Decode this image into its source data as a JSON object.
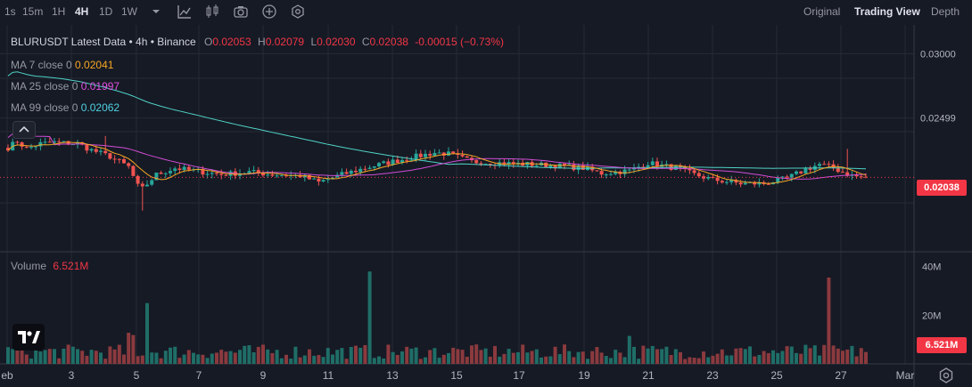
{
  "toolbar": {
    "intervals": [
      "1s",
      "15m",
      "1H",
      "4H",
      "1D",
      "1W"
    ],
    "active_interval": "4H",
    "icons": [
      "chevron-down-icon",
      "indicators-icon",
      "candles-icon",
      "camera-icon",
      "add-icon",
      "settings-hex-icon"
    ],
    "views": [
      "Original",
      "Trading View",
      "Depth"
    ],
    "active_view": "Trading View"
  },
  "legend": {
    "title": "BLURUSDT Latest Data • 4h • Binance",
    "o_label": "O",
    "o_value": "0.02053",
    "h_label": "H",
    "h_value": "0.02079",
    "l_label": "L",
    "l_value": "0.02030",
    "c_label": "C",
    "c_value": "0.02038",
    "change": "-0.00015 (−0.73%)",
    "ma7_label": "MA 7 close 0",
    "ma7_value": "0.02041",
    "ma25_label": "MA 25 close 0",
    "ma25_value": "0.01997",
    "ma99_label": "MA 99 close 0",
    "ma99_value": "0.02062",
    "volume_label": "Volume",
    "volume_value": "6.521M"
  },
  "colors": {
    "up": "#26a69a",
    "down": "#ef5350",
    "ma7": "#f5a623",
    "ma25": "#d04dd6",
    "ma99": "#4fd1c5",
    "accent": "#f23645"
  },
  "chart_data": {
    "type": "candlestick",
    "price_axis": {
      "ticks": [
        0.03,
        0.02499
      ],
      "tick_labels": [
        "0.03000",
        "0.02499"
      ],
      "range": [
        0.0148,
        0.0321
      ]
    },
    "volume_axis": {
      "ticks": [
        40,
        20
      ],
      "tick_labels": [
        "40M",
        "20M"
      ],
      "unit": "M",
      "range": [
        0,
        45
      ]
    },
    "x_labels": [
      "eb",
      "3",
      "5",
      "7",
      "9",
      "11",
      "13",
      "15",
      "17",
      "19",
      "21",
      "23",
      "25",
      "27",
      "Mar"
    ],
    "last_price": "0.02038",
    "last_volume": "6.521M",
    "price_anchors": [
      [
        0,
        0.0227
      ],
      [
        2,
        0.0232
      ],
      [
        4,
        0.0226
      ],
      [
        7,
        0.023
      ],
      [
        10,
        0.0231
      ],
      [
        15,
        0.023
      ],
      [
        18,
        0.0225
      ],
      [
        22,
        0.022
      ],
      [
        26,
        0.0212
      ],
      [
        28,
        0.0197
      ],
      [
        29,
        0.0195
      ],
      [
        32,
        0.0206
      ],
      [
        36,
        0.0211
      ],
      [
        40,
        0.0209
      ],
      [
        46,
        0.0206
      ],
      [
        52,
        0.0208
      ],
      [
        57,
        0.0206
      ],
      [
        63,
        0.0205
      ],
      [
        67,
        0.02
      ],
      [
        72,
        0.0206
      ],
      [
        78,
        0.0212
      ],
      [
        84,
        0.0217
      ],
      [
        88,
        0.022
      ],
      [
        92,
        0.0223
      ],
      [
        95,
        0.0222
      ],
      [
        100,
        0.0216
      ],
      [
        106,
        0.0215
      ],
      [
        112,
        0.0214
      ],
      [
        118,
        0.0213
      ],
      [
        124,
        0.0211
      ],
      [
        128,
        0.0207
      ],
      [
        134,
        0.0209
      ],
      [
        138,
        0.0215
      ],
      [
        144,
        0.0211
      ],
      [
        148,
        0.0206
      ],
      [
        152,
        0.0202
      ],
      [
        158,
        0.0199
      ],
      [
        163,
        0.0199
      ],
      [
        168,
        0.0203
      ],
      [
        172,
        0.021
      ],
      [
        175,
        0.0214
      ],
      [
        178,
        0.0211
      ],
      [
        182,
        0.0205
      ],
      [
        184,
        0.0204
      ]
    ],
    "volume_spikes": [
      [
        30,
        25
      ],
      [
        78,
        38
      ],
      [
        134,
        11.5
      ],
      [
        177,
        35.5
      ],
      [
        184,
        6.5
      ]
    ]
  }
}
